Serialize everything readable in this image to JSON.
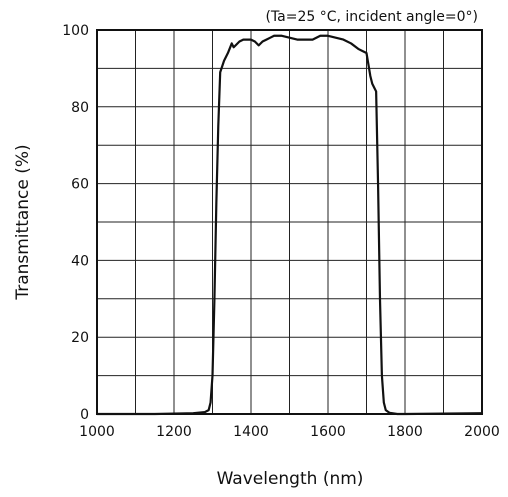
{
  "chart_data": {
    "type": "line",
    "title": "",
    "annotation": "(Ta=25 °C, incident angle=0°)",
    "xlabel": "Wavelength (nm)",
    "ylabel": "Transmittance (%)",
    "xlim": [
      1000,
      2000
    ],
    "ylim": [
      0,
      100
    ],
    "xticks": [
      1000,
      1200,
      1400,
      1600,
      1800,
      2000
    ],
    "yticks": [
      0,
      20,
      40,
      60,
      80,
      100
    ],
    "xtick_labels": [
      "1000",
      "1200",
      "1400",
      "1600",
      "1800",
      "2000"
    ],
    "ytick_labels": [
      "0",
      "20",
      "40",
      "60",
      "80",
      "100"
    ],
    "grid": true,
    "grid_x_step": 100,
    "grid_y_step": 10,
    "legend": "none",
    "series": [
      {
        "x": [
          1000,
          1150,
          1250,
          1280,
          1290,
          1295,
          1300,
          1305,
          1310,
          1315,
          1320,
          1330,
          1340,
          1350,
          1355,
          1360,
          1370,
          1380,
          1400,
          1410,
          1420,
          1430,
          1440,
          1450,
          1460,
          1480,
          1500,
          1520,
          1540,
          1560,
          1580,
          1600,
          1620,
          1640,
          1660,
          1680,
          1690,
          1700,
          1705,
          1710,
          1715,
          1720,
          1725,
          1730,
          1735,
          1740,
          1745,
          1750,
          1760,
          1780,
          1800,
          2000
        ],
        "y": [
          0,
          0,
          0.2,
          0.5,
          1,
          3,
          10,
          30,
          55,
          75,
          89,
          92,
          94,
          96.5,
          95.5,
          96,
          97,
          97.5,
          97.5,
          97,
          96,
          97,
          97.5,
          98,
          98.5,
          98.5,
          98,
          97.5,
          97.5,
          97.5,
          98.5,
          98.5,
          98,
          97.5,
          96.5,
          95,
          94.5,
          94,
          91,
          88,
          86,
          85,
          84,
          60,
          30,
          10,
          3,
          1,
          0.3,
          0,
          0,
          0.2
        ]
      }
    ]
  }
}
